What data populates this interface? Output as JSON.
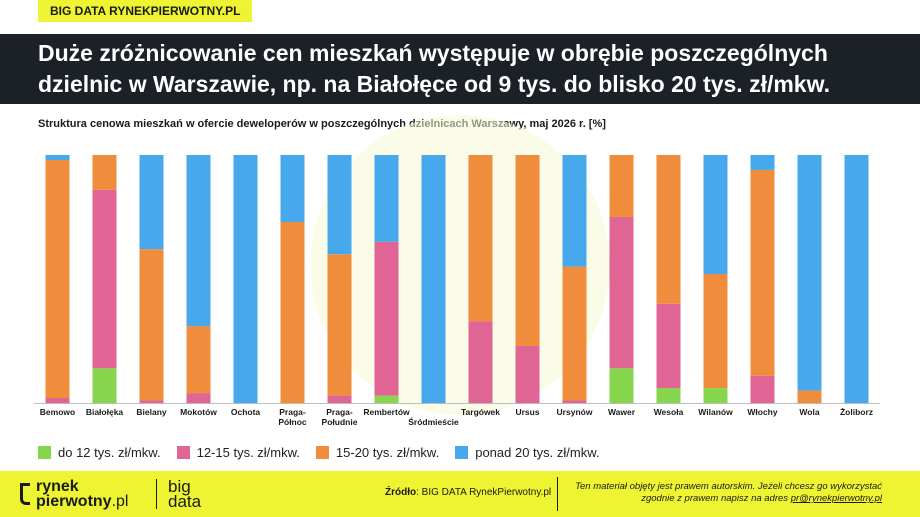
{
  "badge": "BIG DATA RYNEKPIERWOTNY.PL",
  "headline": {
    "line1": "Duże zróżnicowanie cen mieszkań występuje w obrębie poszczególnych",
    "line2": "dzielnic w Warszawie, np. na Białołęce od 9 tys. do blisko 20 tys. zł/mkw."
  },
  "colors": {
    "green": "#86d64d",
    "pink": "#e06594",
    "orange": "#f08d3d",
    "blue": "#47a8eb",
    "accent": "#eef432",
    "dark": "#1c2027"
  },
  "chart_data": {
    "type": "bar",
    "stacked": true,
    "title": "Struktura cenowa mieszkań w ofercie deweloperów w poszczególnych dzielnicach Warszawy,  maj 2026 r. [%]",
    "categories": [
      "Bemowo",
      "Białołęka",
      "Bielany",
      "Mokotów",
      "Ochota",
      "Praga-Północ",
      "Praga-Południe",
      "Rembertów",
      "Śródmieście",
      "Targówek",
      "Ursus",
      "Ursynów",
      "Wawer",
      "Wesoła",
      "Wilanów",
      "Włochy",
      "Wola",
      "Żoliborz"
    ],
    "tick_lines": [
      [
        "Bemowo"
      ],
      [
        "Białołęka"
      ],
      [
        "Bielany"
      ],
      [
        "Mokotów"
      ],
      [
        "Ochota"
      ],
      [
        "Praga-",
        "Północ"
      ],
      [
        "Praga-",
        "Południe"
      ],
      [
        "Rembertów"
      ],
      [
        "",
        "Śródmieście"
      ],
      [
        "Targówek"
      ],
      [
        "Ursus"
      ],
      [
        "Ursynów"
      ],
      [
        "Wawer"
      ],
      [
        "Wesoła"
      ],
      [
        "Wilanów"
      ],
      [
        "Włochy"
      ],
      [
        "Wola"
      ],
      [
        "Żoliborz"
      ]
    ],
    "series": [
      {
        "name": "do 12 tys. zł/mkw.",
        "color": "#86d64d",
        "values": [
          0,
          14,
          0,
          0,
          0,
          0,
          0,
          3,
          0,
          0,
          0,
          0,
          14,
          6,
          6,
          0,
          0,
          0
        ]
      },
      {
        "name": "12-15 tys. zł/mkw.",
        "color": "#e06594",
        "values": [
          2,
          72,
          1,
          4,
          0,
          0,
          3,
          62,
          0,
          33,
          23,
          1,
          61,
          34,
          0,
          11,
          0,
          0
        ]
      },
      {
        "name": "15-20 tys. zł/mkw.",
        "color": "#f08d3d",
        "values": [
          96,
          14,
          61,
          27,
          0,
          73,
          57,
          0,
          0,
          67,
          77,
          54,
          25,
          60,
          46,
          83,
          5,
          0
        ]
      },
      {
        "name": "ponad 20 tys. zł/mkw.",
        "color": "#47a8eb",
        "values": [
          2,
          0,
          38,
          69,
          100,
          27,
          40,
          35,
          100,
          0,
          0,
          45,
          0,
          0,
          48,
          6,
          95,
          100
        ]
      }
    ],
    "ylim": [
      0,
      100
    ],
    "grid": false,
    "legend_position": "bottom-left"
  },
  "footer": {
    "logo_line1": "rynek",
    "logo_line2a": "pierwotny",
    "logo_line2b": ".pl",
    "big_line1": "big",
    "big_line2": "data",
    "source_label": "Źródło",
    "source_text": ": BIG DATA RynekPierwotny.pl",
    "copyright_line1": "Ten materiał objęty jest prawem autorskim. Jeżeli chcesz go wykorzystać",
    "copyright_line2": "zgodnie z prawem napisz na adres ",
    "email": "pr@rynekpierwotny.pl"
  }
}
